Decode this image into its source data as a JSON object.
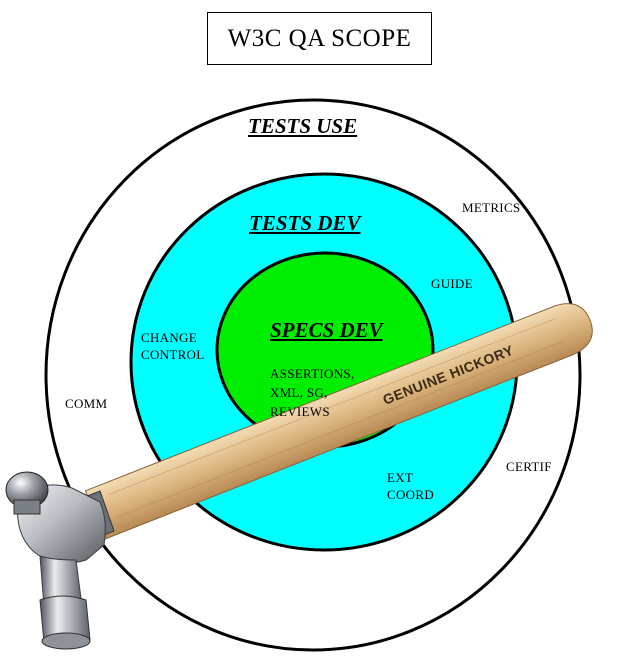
{
  "title": "W3C QA SCOPE",
  "rings": {
    "outer": {
      "heading": "TESTS USE",
      "color": "#ffffff"
    },
    "middle": {
      "heading": "TESTS DEV",
      "color": "#00ffff"
    },
    "inner": {
      "heading": "SPECS DEV",
      "color": "#00ee00"
    }
  },
  "labels": {
    "metrics": "METRICS",
    "guide": "GUIDE",
    "change_control_1": "CHANGE",
    "change_control_2": "CONTROL",
    "comm": "COMM",
    "certif": "CERTIF",
    "ext_coord_1": "EXT",
    "ext_coord_2": "COORD",
    "assertions_1": "ASSERTIONS,",
    "assertions_2": "XML, SG,",
    "assertions_3": "REVIEWS"
  },
  "hammer": {
    "handle_text": "GENUINE HICKORY",
    "handle_color": "#d8b27e",
    "head_color": "#a9adb3"
  }
}
